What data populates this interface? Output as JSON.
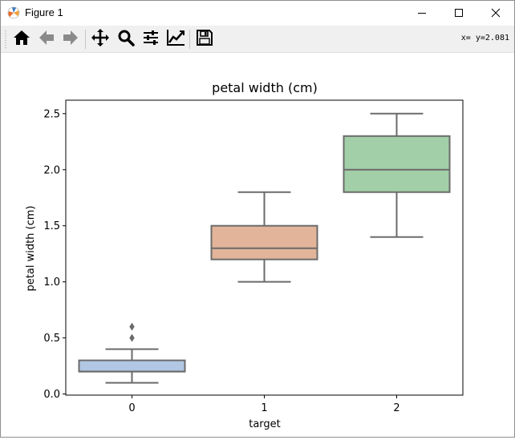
{
  "window": {
    "title": "Figure 1",
    "app_icon": "matplotlib-icon",
    "controls": [
      "minimize-icon",
      "maximize-icon",
      "close-icon"
    ]
  },
  "toolbar": {
    "buttons": [
      "home-icon",
      "back-arrow-icon",
      "forward-arrow-icon",
      "pan-icon",
      "zoom-icon",
      "configure-subplots-icon",
      "edit-curves-icon",
      "save-icon"
    ],
    "coordinates": "x= y=2.081"
  },
  "chart_data": {
    "type": "box",
    "title": "petal width (cm)",
    "xlabel": "target",
    "ylabel": "petal width (cm)",
    "categories": [
      "0",
      "1",
      "2"
    ],
    "ylim": [
      -0.01,
      2.62
    ],
    "yticks": [
      "0.0",
      "0.5",
      "1.0",
      "1.5",
      "2.0",
      "2.5"
    ],
    "grid": false,
    "boxes": [
      {
        "category": "0",
        "whisker_low": 0.1,
        "q1": 0.2,
        "median": 0.2,
        "q3": 0.3,
        "whisker_high": 0.4,
        "outliers": [
          0.5,
          0.6
        ],
        "color": "#b1c7e3"
      },
      {
        "category": "1",
        "whisker_low": 1.0,
        "q1": 1.2,
        "median": 1.3,
        "q3": 1.5,
        "whisker_high": 1.8,
        "outliers": [],
        "color": "#e2b59a"
      },
      {
        "category": "2",
        "whisker_low": 1.4,
        "q1": 1.8,
        "median": 2.0,
        "q3": 2.3,
        "whisker_high": 2.5,
        "outliers": [],
        "color": "#a2cfa8"
      }
    ],
    "line_color": "#6b6b6b"
  }
}
